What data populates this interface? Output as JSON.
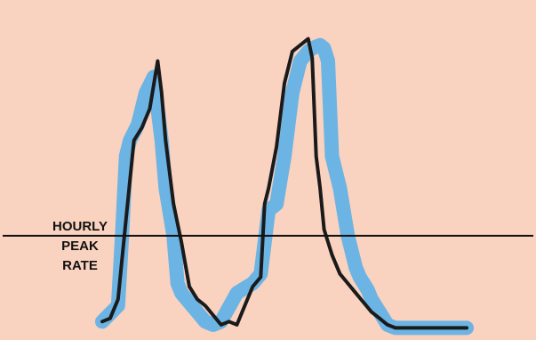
{
  "chart_data": {
    "type": "line",
    "title": "",
    "xlabel": "",
    "ylabel": "",
    "grid": false,
    "x_range": [
      0,
      100
    ],
    "y_range": [
      0,
      100
    ],
    "series": [
      {
        "style": "smoothed-trend",
        "x": [
          0,
          4,
          5,
          6,
          7,
          9,
          11,
          13,
          14,
          15,
          16,
          18,
          19,
          20,
          22,
          24,
          26,
          28,
          30,
          34,
          38,
          40,
          42,
          44,
          46,
          48,
          50,
          52,
          53,
          55,
          56,
          57,
          58,
          60,
          62,
          63,
          64,
          65,
          66,
          67,
          68,
          70,
          72,
          74,
          76,
          78,
          80,
          82,
          84,
          86,
          88,
          90,
          92
        ],
        "y": [
          3,
          8,
          30,
          55,
          60,
          65,
          75,
          80,
          70,
          60,
          45,
          30,
          15,
          12,
          9,
          6,
          3,
          2,
          3,
          12,
          15,
          18,
          38,
          40,
          55,
          75,
          85,
          88,
          89,
          90,
          89,
          85,
          55,
          45,
          30,
          25,
          20,
          17,
          15,
          13,
          10,
          6,
          2,
          1,
          1,
          1,
          1,
          1,
          1,
          1,
          1,
          1,
          1
        ]
      },
      {
        "style": "raw-hourly",
        "x": [
          0,
          2,
          4,
          6,
          8,
          10,
          12,
          14,
          15,
          16,
          18,
          20,
          22,
          24,
          26,
          28,
          30,
          32,
          34,
          36,
          38,
          40,
          41,
          42,
          44,
          46,
          48,
          50,
          52,
          53,
          54,
          55,
          56,
          58,
          60,
          62,
          64,
          66,
          68,
          70,
          72,
          74,
          76,
          78,
          80,
          82,
          84,
          86,
          88,
          90,
          92
        ],
        "y": [
          3,
          4,
          10,
          35,
          60,
          64,
          70,
          85,
          75,
          60,
          40,
          28,
          14,
          10,
          8,
          5,
          2,
          3,
          2,
          8,
          14,
          17,
          40,
          45,
          58,
          78,
          88,
          90,
          92,
          86,
          55,
          45,
          32,
          24,
          18,
          15,
          12,
          9,
          6,
          4,
          2,
          1,
          1,
          1,
          1,
          1,
          1,
          1,
          1,
          1,
          1
        ]
      }
    ],
    "reference_line": {
      "label_lines": [
        "HOURLY",
        "PEAK",
        "RATE"
      ],
      "y": 30
    },
    "colors": {
      "background": "#fad2c0",
      "trend": "#6cb4e4",
      "raw": "#1a1a1a",
      "reference_line": "#111111"
    }
  }
}
